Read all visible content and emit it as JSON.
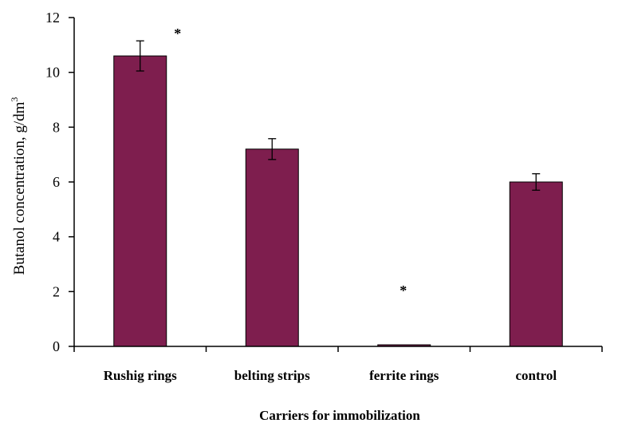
{
  "chart_data": {
    "type": "bar",
    "categories": [
      "Rushig rings",
      "belting strips",
      "ferrite rings",
      "control"
    ],
    "values": [
      10.6,
      7.2,
      0.05,
      6.0
    ],
    "errors": [
      0.55,
      0.38,
      0.0,
      0.3
    ],
    "significance": [
      "*",
      "",
      "*",
      ""
    ],
    "xlabel": "Carriers for immobilization",
    "ylabel": "Butanol concentration, g/dm",
    "ylabel_superscript": "3",
    "ylim": [
      0,
      12
    ],
    "yticks": [
      "0",
      "2",
      "4",
      "6",
      "8",
      "10",
      "12"
    ],
    "grid": false,
    "bar_color": "#7e1e4e"
  }
}
